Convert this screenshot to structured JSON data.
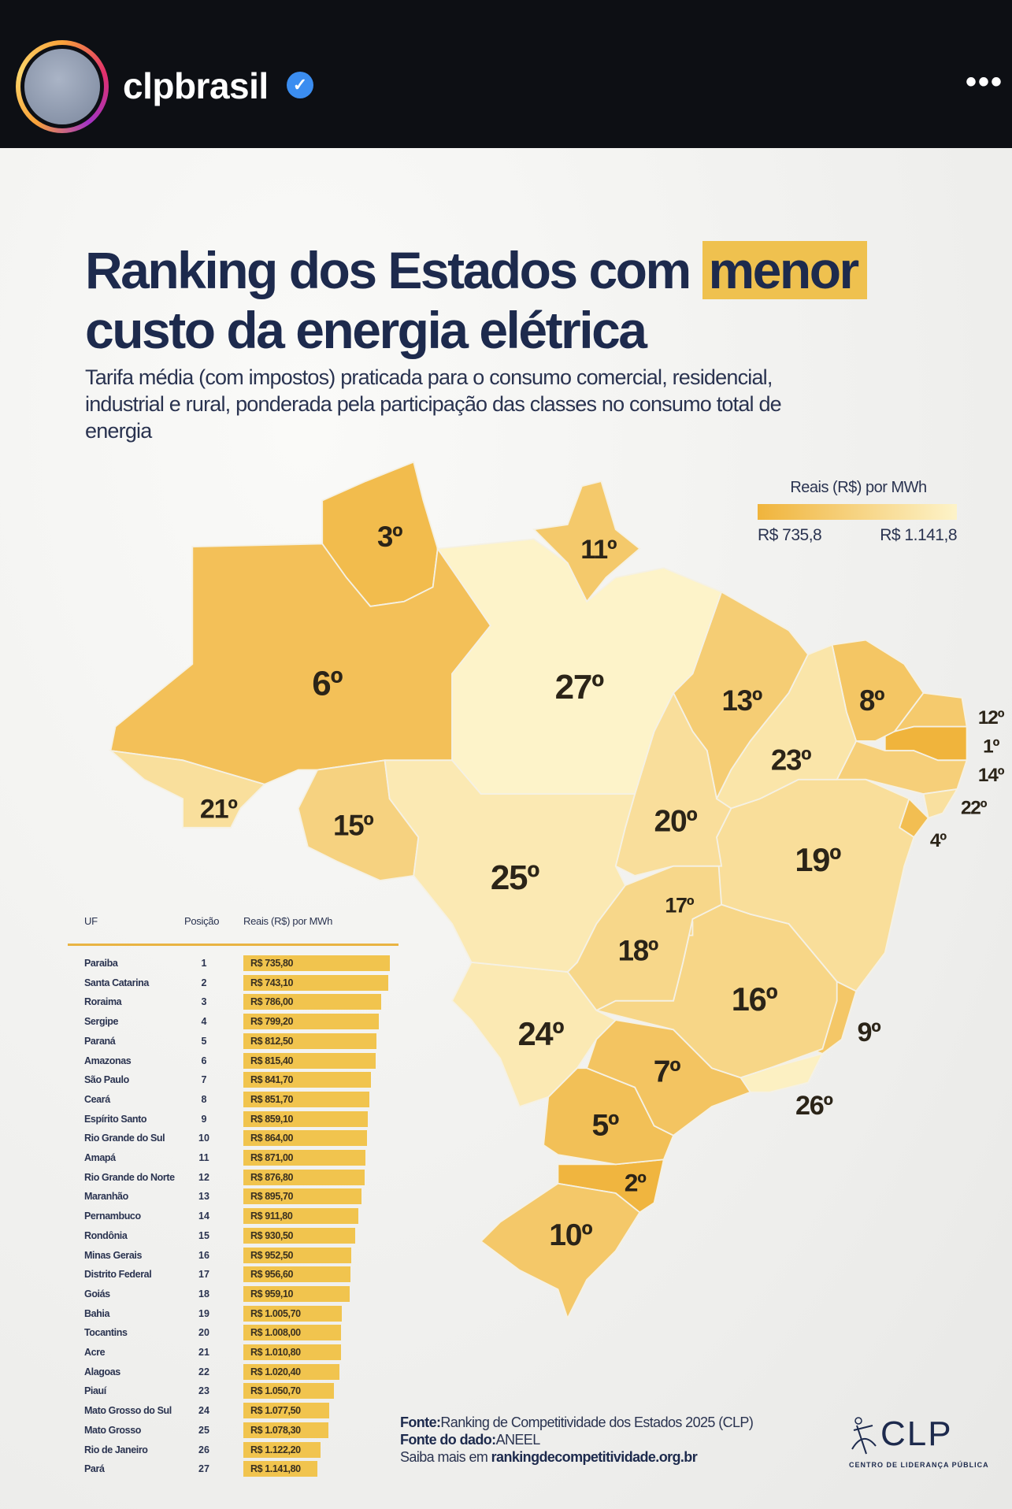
{
  "header": {
    "username": "clpbrasil",
    "verified_icon": "verified-badge-icon",
    "more_icon": "more-dots-icon"
  },
  "title": {
    "line1": "Ranking dos Estados com ",
    "highlight": "menor",
    "line2": "custo da energia elétrica"
  },
  "subtitle": "Tarifa média (com impostos) praticada para o consumo comercial, residencial, industrial e rural, ponderada pela participação das classes no consumo total de energia",
  "legend": {
    "title": "Reais (R$) por MWh",
    "min_label": "R$ 735,8",
    "max_label": "R$ 1.141,8",
    "min_color": "#f0b43c",
    "max_color": "#fdf3c9"
  },
  "table": {
    "headers": {
      "uf": "UF",
      "position": "Posição",
      "value": "Reais (R$) por MWh"
    }
  },
  "footer": {
    "source_label": "Fonte:",
    "source": "Ranking de Competitividade dos Estados 2025 (CLP)",
    "data_source_label": "Fonte do dado:",
    "data_source": "ANEEL",
    "more_label": "Saiba mais em ",
    "more_link": "rankingdecompetitividade.org.br",
    "logo_text": "CLP",
    "logo_sub": "CENTRO DE LIDERANÇA PÚBLICA"
  },
  "chart_data": {
    "type": "table",
    "title": "Ranking dos Estados com menor custo da energia elétrica",
    "unit": "Reais (R$) por MWh",
    "range": [
      735.8,
      1141.8
    ],
    "states": [
      {
        "name": "Paraiba",
        "position": 1,
        "rank_label": "1º",
        "value": 735.8,
        "value_label": "R$ 735,80"
      },
      {
        "name": "Santa Catarina",
        "position": 2,
        "rank_label": "2º",
        "value": 743.1,
        "value_label": "R$ 743,10"
      },
      {
        "name": "Roraima",
        "position": 3,
        "rank_label": "3º",
        "value": 786.0,
        "value_label": "R$ 786,00"
      },
      {
        "name": "Sergipe",
        "position": 4,
        "rank_label": "4º",
        "value": 799.2,
        "value_label": "R$ 799,20"
      },
      {
        "name": "Paraná",
        "position": 5,
        "rank_label": "5º",
        "value": 812.5,
        "value_label": "R$ 812,50"
      },
      {
        "name": "Amazonas",
        "position": 6,
        "rank_label": "6º",
        "value": 815.4,
        "value_label": "R$ 815,40"
      },
      {
        "name": "São Paulo",
        "position": 7,
        "rank_label": "7º",
        "value": 841.7,
        "value_label": "R$ 841,70"
      },
      {
        "name": "Ceará",
        "position": 8,
        "rank_label": "8º",
        "value": 851.7,
        "value_label": "R$ 851,70"
      },
      {
        "name": "Espírito Santo",
        "position": 9,
        "rank_label": "9º",
        "value": 859.1,
        "value_label": "R$ 859,10"
      },
      {
        "name": "Rio Grande do Sul",
        "position": 10,
        "rank_label": "10º",
        "value": 864.0,
        "value_label": "R$ 864,00"
      },
      {
        "name": "Amapá",
        "position": 11,
        "rank_label": "11º",
        "value": 871.0,
        "value_label": "R$ 871,00"
      },
      {
        "name": "Rio Grande do Norte",
        "position": 12,
        "rank_label": "12º",
        "value": 876.8,
        "value_label": "R$ 876,80"
      },
      {
        "name": "Maranhão",
        "position": 13,
        "rank_label": "13º",
        "value": 895.7,
        "value_label": "R$ 895,70"
      },
      {
        "name": "Pernambuco",
        "position": 14,
        "rank_label": "14º",
        "value": 911.8,
        "value_label": "R$ 911,80"
      },
      {
        "name": "Rondônia",
        "position": 15,
        "rank_label": "15º",
        "value": 930.5,
        "value_label": "R$ 930,50"
      },
      {
        "name": "Minas Gerais",
        "position": 16,
        "rank_label": "16º",
        "value": 952.5,
        "value_label": "R$ 952,50"
      },
      {
        "name": "Distrito Federal",
        "position": 17,
        "rank_label": "17º",
        "value": 956.6,
        "value_label": "R$ 956,60"
      },
      {
        "name": "Goiás",
        "position": 18,
        "rank_label": "18º",
        "value": 959.1,
        "value_label": "R$ 959,10"
      },
      {
        "name": "Bahia",
        "position": 19,
        "rank_label": "19º",
        "value": 1005.7,
        "value_label": "R$ 1.005,70"
      },
      {
        "name": "Tocantins",
        "position": 20,
        "rank_label": "20º",
        "value": 1008.0,
        "value_label": "R$ 1.008,00"
      },
      {
        "name": "Acre",
        "position": 21,
        "rank_label": "21º",
        "value": 1010.8,
        "value_label": "R$ 1.010,80"
      },
      {
        "name": "Alagoas",
        "position": 22,
        "rank_label": "22º",
        "value": 1020.4,
        "value_label": "R$ 1.020,40"
      },
      {
        "name": "Piauí",
        "position": 23,
        "rank_label": "23º",
        "value": 1050.7,
        "value_label": "R$ 1.050,70"
      },
      {
        "name": "Mato Grosso do Sul",
        "position": 24,
        "rank_label": "24º",
        "value": 1077.5,
        "value_label": "R$ 1.077,50"
      },
      {
        "name": "Mato Grosso",
        "position": 25,
        "rank_label": "25º",
        "value": 1078.3,
        "value_label": "R$ 1.078,30"
      },
      {
        "name": "Rio de Janeiro",
        "position": 26,
        "rank_label": "26º",
        "value": 1122.2,
        "value_label": "R$ 1.122,20"
      },
      {
        "name": "Pará",
        "position": 27,
        "rank_label": "27º",
        "value": 1141.8,
        "value_label": "R$ 1.141,80"
      }
    ]
  }
}
